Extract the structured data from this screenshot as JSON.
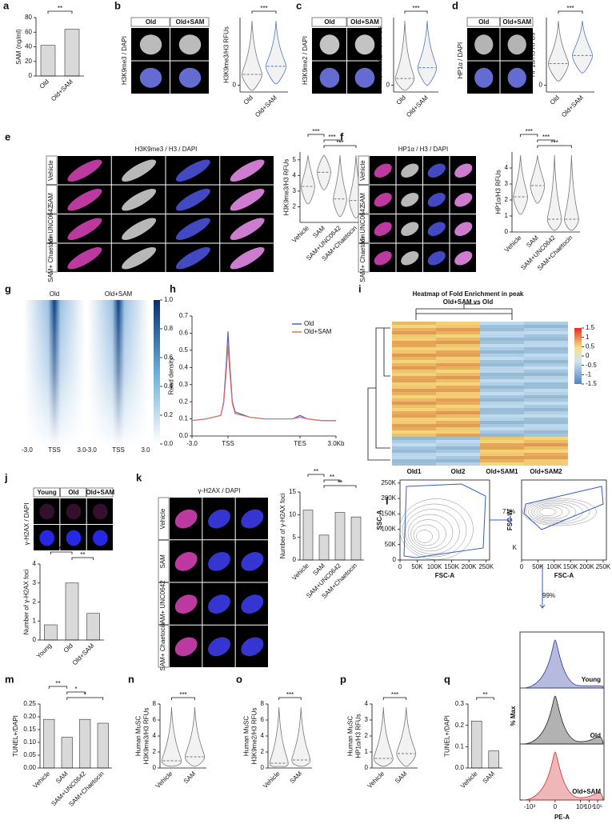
{
  "chart_data": [
    {
      "panel": "a",
      "type": "bar",
      "ylabel": "SAM (ng/ml)",
      "categories": [
        "Old",
        "Old+SAM"
      ],
      "values": [
        42,
        64
      ],
      "ylim": [
        0,
        80
      ],
      "yticks": [
        0,
        20,
        40,
        60,
        80
      ],
      "color": "#d9d9d9",
      "significance": [
        "**"
      ]
    },
    {
      "type": "violin",
      "ylabel": "H3K9me3/H3 RFUs",
      "categories": [
        "Old",
        "Old+SAM"
      ],
      "values": [
        0.8,
        1.4
      ],
      "colors": [
        "#777777",
        "#4a78c8"
      ],
      "ylim": [
        -0.5,
        5
      ],
      "yticks": [
        0
      ],
      "significance": [
        "***"
      ]
    },
    {
      "type": "violin",
      "ylabel": "H3K9me2/H3 RFUs",
      "categories": [
        "Old",
        "Old+SAM"
      ],
      "values": [
        0.5,
        1.3
      ],
      "colors": [
        "#777777",
        "#4a78c8"
      ],
      "ylim": [
        -0.5,
        5
      ],
      "yticks": [
        0
      ],
      "significance": [
        "***"
      ]
    },
    {
      "type": "violin",
      "ylabel": "HP1α/H3 RFUs",
      "categories": [
        "Old",
        "Old+SAM"
      ],
      "values": [
        1.6,
        2.2
      ],
      "colors": [
        "#777777",
        "#4a78c8"
      ],
      "ylim": [
        -0.5,
        5
      ],
      "yticks": [
        0
      ],
      "significance": [
        "***"
      ]
    },
    {
      "type": "violin",
      "ylabel": "H3K9me3/H3 RFUs",
      "categories": [
        "Vehicle",
        "SAM",
        "SAM+UNC0642",
        "SAM+Chaetocin"
      ],
      "values": [
        3.3,
        4.2,
        2.5,
        2.4
      ],
      "colors": [
        "#777777",
        "#777777",
        "#777777",
        "#777777"
      ],
      "ylim": [
        1,
        5.5
      ],
      "yticks": [
        2,
        3,
        4,
        5
      ],
      "significance": [
        "***",
        "***",
        "***"
      ]
    },
    {
      "type": "violin",
      "ylabel": "HP1α/H3 RFUs",
      "categories": [
        "Vehicle",
        "SAM",
        "SAM+UNC0642",
        "SAM+Chaetocin"
      ],
      "values": [
        2.2,
        2.9,
        0.8,
        0.8
      ],
      "colors": [
        "#777777",
        "#777777",
        "#777777",
        "#777777"
      ],
      "ylim": [
        0,
        5
      ],
      "yticks": [
        0,
        1,
        2,
        3,
        4
      ],
      "significance": [
        "***",
        "***",
        "***"
      ]
    },
    {
      "panel": "h",
      "type": "line",
      "ylabel": "Read density",
      "x": [
        0,
        10,
        20,
        22,
        24,
        25,
        26,
        28,
        30,
        40,
        50,
        60,
        70,
        75,
        80,
        90,
        100
      ],
      "xlim": [
        0,
        100
      ],
      "xticks": [
        {
          "value": 0,
          "label": "-3.0"
        },
        {
          "value": 25,
          "label": "TSS"
        },
        {
          "value": 75,
          "label": "TES"
        },
        {
          "value": 100,
          "label": "3.0Kb"
        }
      ],
      "ylim": [
        0,
        0.7
      ],
      "yticks": [
        {
          "value": 0,
          "label": "0.0"
        },
        0.1,
        0.2,
        0.3,
        0.4,
        0.5,
        0.6,
        0.7
      ],
      "series": [
        {
          "name": "Old",
          "color": "#5060c8",
          "values": [
            0.09,
            0.1,
            0.12,
            0.2,
            0.45,
            0.61,
            0.45,
            0.2,
            0.14,
            0.11,
            0.1,
            0.1,
            0.1,
            0.12,
            0.1,
            0.09,
            0.09
          ]
        },
        {
          "name": "Old+SAM",
          "color": "#e07060",
          "values": [
            0.09,
            0.1,
            0.12,
            0.19,
            0.4,
            0.53,
            0.4,
            0.19,
            0.13,
            0.11,
            0.1,
            0.1,
            0.1,
            0.11,
            0.1,
            0.09,
            0.09
          ]
        }
      ]
    },
    {
      "type": "bar",
      "ylabel": "Number of γ-H2AX foci",
      "categories": [
        "Young",
        "Old",
        "Old+SAM"
      ],
      "values": [
        0.8,
        3.0,
        1.4
      ],
      "ylim": [
        0,
        4
      ],
      "yticks": [
        0,
        1,
        2,
        3,
        4
      ],
      "color": "#d9d9d9",
      "significance": [
        "**",
        "**"
      ]
    },
    {
      "type": "bar",
      "ylabel": "Number of γ-H2AX foci",
      "categories": [
        "Vehicle",
        "SAM",
        "SAM+UNC0642",
        "SAM+Chaetocin"
      ],
      "values": [
        11,
        5.5,
        10.5,
        9.5
      ],
      "ylim": [
        0,
        15
      ],
      "yticks": [
        0,
        5,
        10,
        15
      ],
      "color": "#d9d9d9",
      "significance": [
        "**",
        "**",
        "**"
      ]
    },
    {
      "panel": "m",
      "type": "bar",
      "ylabel": "TUNEL+/DAPI",
      "categories": [
        "Vehicle",
        "SAM",
        "SAM+UNC0642",
        "SAM+Chaetocin"
      ],
      "values": [
        0.19,
        0.12,
        0.19,
        0.175
      ],
      "ylim": [
        0,
        0.25
      ],
      "yticks": [
        {
          "value": 0,
          "label": "0.00"
        },
        0.05,
        {
          "value": 0.1,
          "label": "0.10"
        },
        0.15,
        {
          "value": 0.2,
          "label": "0.20"
        },
        0.25
      ],
      "color": "#d9d9d9",
      "significance": [
        "**",
        "*",
        "*"
      ]
    },
    {
      "panel": "n",
      "type": "violin",
      "ylabel": [
        "Human MuSC",
        "H3K9me3/H3 RFUs"
      ],
      "categories": [
        "Vehicle",
        "SAM"
      ],
      "values": [
        0.9,
        1.4
      ],
      "colors": [
        "#777777",
        "#777777"
      ],
      "ylim": [
        0,
        8
      ],
      "yticks": [
        0,
        2,
        4,
        6,
        8
      ],
      "significance": [
        "***"
      ]
    },
    {
      "panel": "o",
      "type": "violin",
      "ylabel": [
        "Human MuSC",
        "H3K9me2/H3 RFUs"
      ],
      "categories": [
        "Vehicle",
        "SAM"
      ],
      "values": [
        0.6,
        1.0
      ],
      "colors": [
        "#777777",
        "#777777"
      ],
      "ylim": [
        0,
        8
      ],
      "yticks": [
        0,
        2,
        4,
        6,
        8
      ],
      "significance": [
        "***"
      ]
    },
    {
      "panel": "p",
      "type": "violin",
      "ylabel": [
        "Human MuSC",
        "HP1α/H3 RFUs"
      ],
      "categories": [
        "Vehicle",
        "SAM"
      ],
      "values": [
        0.6,
        0.9
      ],
      "colors": [
        "#777777",
        "#777777"
      ],
      "ylim": [
        0,
        4
      ],
      "yticks": [
        0,
        1,
        2,
        3,
        4
      ],
      "significance": [
        "***"
      ]
    },
    {
      "panel": "q",
      "type": "bar",
      "ylabel": "TUNEL+/DAPI",
      "categories": [
        "Vehicle",
        "SAM"
      ],
      "values": [
        0.22,
        0.08
      ],
      "ylim": [
        0,
        0.3
      ],
      "yticks": [
        {
          "value": 0,
          "label": "0.0"
        },
        0.1,
        0.2,
        0.3
      ],
      "color": "#d9d9d9",
      "significance": [
        "**"
      ]
    }
  ],
  "images": [
    {
      "panel": "b",
      "stain": "H3K9me3 / DAPI",
      "columns": [
        "Old",
        "Old+SAM"
      ]
    },
    {
      "panel": "c",
      "stain": "H3K9me2 / DAPI",
      "columns": [
        "Old",
        "Old+SAM"
      ]
    },
    {
      "panel": "d",
      "stain": "HP1α / DAPI",
      "columns": [
        "Old",
        "Old+SAM"
      ]
    },
    {
      "panel": "e",
      "stain": "H3K9me3 / H3 / DAPI",
      "rows": [
        "Vehicle",
        "SAM",
        "SAM+ UNC0642",
        "SAM+ Chaetocin"
      ]
    },
    {
      "panel": "f",
      "stain": "HP1α / H3 / DAPI",
      "rows": [
        "Vehicle",
        "SAM",
        "SAM+ UNC0642",
        "SAM+ Chaetocin"
      ]
    },
    {
      "panel": "j",
      "stain": "γ-H2AX / DAPI",
      "columns": [
        "Young",
        "Old",
        "Old+SAM"
      ]
    },
    {
      "panel": "k",
      "stain": "γ-H2AX / DAPI",
      "rows": [
        "Vehicle",
        "SAM",
        "SAM+ UNC0642",
        "SAM+ Chaetocin"
      ]
    }
  ],
  "heatmaps": [
    {
      "panel": "g",
      "columns": [
        "Old",
        "Old+SAM"
      ],
      "xticks": [
        "-3.0",
        "TSS",
        "3.0"
      ],
      "colorbar": [
        {
          "value": 0,
          "label": "0.0"
        },
        0.2,
        0.4,
        0.6,
        0.8,
        {
          "value": 1,
          "label": "1.0"
        }
      ]
    },
    {
      "panel": "i",
      "title": [
        "Heatmap of Fold Enrichment in peak",
        "Old+SAM vs Old"
      ],
      "columns": [
        "Old1",
        "Old2",
        "Old+SAM1",
        "Old+SAM2"
      ],
      "colorbar": [
        1.5,
        1,
        0.5,
        0,
        -0.5,
        -1,
        -1.5
      ]
    }
  ],
  "flow": {
    "panel": "l",
    "plots": [
      {
        "ylabel": "SSC-A",
        "xlabel": "FSC-A",
        "gate": "71%",
        "yticks": [
          0,
          {
            "value": 50000,
            "label": "50K"
          },
          {
            "value": 100000,
            "label": "100K"
          },
          {
            "value": 150000,
            "label": "150K"
          },
          {
            "value": 200000,
            "label": "200K"
          },
          {
            "value": 250000,
            "label": "250K"
          }
        ],
        "xticks": [
          0,
          {
            "value": 50000,
            "label": "50K"
          },
          {
            "value": 100000,
            "label": "100K"
          },
          {
            "value": 150000,
            "label": "150K"
          },
          {
            "value": 200000,
            "label": "200K"
          },
          {
            "value": 250000,
            "label": "250K"
          }
        ]
      },
      {
        "ylabel": "FSC-W",
        "yticks": [
          "K"
        ],
        "xlabel": "FSC-A",
        "gate": "99%",
        "xticks": [
          0,
          {
            "value": 50000,
            "label": "50K"
          },
          {
            "value": 100000,
            "label": "100K"
          },
          {
            "value": 150000,
            "label": "150K"
          },
          {
            "value": 200000,
            "label": "200K"
          },
          {
            "value": 250000,
            "label": "250K"
          }
        ]
      }
    ],
    "histogram": {
      "ylabel": "% Max",
      "xlabel": "PE-A",
      "series": [
        {
          "name": "Young",
          "color": "#2a3aa0"
        },
        {
          "name": "Old",
          "color": "#222222"
        },
        {
          "name": "Old+SAM",
          "color": "#d03030"
        }
      ],
      "xticks": [
        {
          "value": -1000,
          "label": "-10³"
        },
        0,
        {
          "value": 1000,
          "label": "10³"
        },
        {
          "value": 10000,
          "label": "10⁴"
        },
        {
          "value": 100000,
          "label": "10⁵"
        }
      ]
    }
  }
}
